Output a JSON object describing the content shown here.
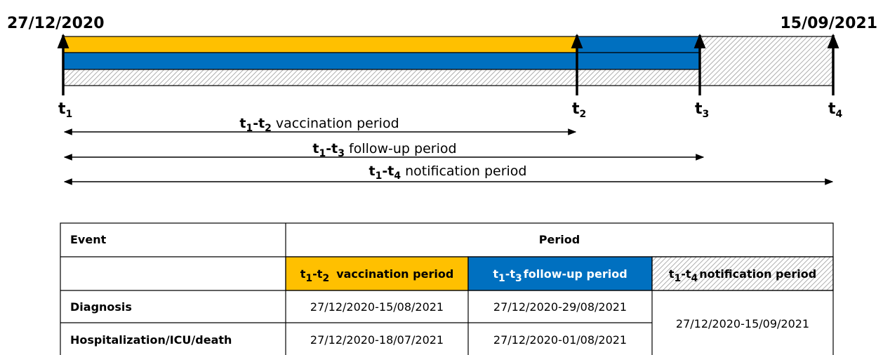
{
  "timeline": {
    "start_date": "27/12/2020",
    "end_date": "15/09/2021",
    "ticks": [
      {
        "t": "t",
        "sub": "1"
      },
      {
        "t": "t",
        "sub": "2"
      },
      {
        "t": "t",
        "sub": "3"
      },
      {
        "t": "t",
        "sub": "4"
      }
    ],
    "periods": [
      {
        "start": "t",
        "start_sub": "1",
        "sep": "-",
        "end": "t",
        "end_sub": "2",
        "text": "vaccination period"
      },
      {
        "start": "t",
        "start_sub": "1",
        "sep": "-",
        "end": "t",
        "end_sub": "3",
        "text": "follow-up period"
      },
      {
        "start": "t",
        "start_sub": "1",
        "sep": "-",
        "end": "t",
        "end_sub": "4",
        "text": "notification period"
      }
    ]
  },
  "table": {
    "header": {
      "event": "Event",
      "period": "Period"
    },
    "periods": [
      {
        "start": "t",
        "start_sub": "1",
        "sep": "-",
        "end": "t",
        "end_sub": "2",
        "text": "vaccination period"
      },
      {
        "start": "t",
        "start_sub": "1",
        "sep": "-",
        "end": "t",
        "end_sub": "3",
        "text": "follow-up period"
      },
      {
        "start": "t",
        "start_sub": "1",
        "sep": "-",
        "end": "t",
        "end_sub": "4",
        "text": "notification period"
      }
    ],
    "rows": [
      {
        "event": "Diagnosis",
        "cells": [
          "27/12/2020-15/08/2021",
          "27/12/2020-29/08/2021"
        ]
      },
      {
        "event": "Hospitalization/ICU/death",
        "cells": [
          "27/12/2020-18/07/2021",
          "27/12/2020-01/08/2021"
        ]
      }
    ],
    "notification": "27/12/2020-15/09/2021"
  }
}
